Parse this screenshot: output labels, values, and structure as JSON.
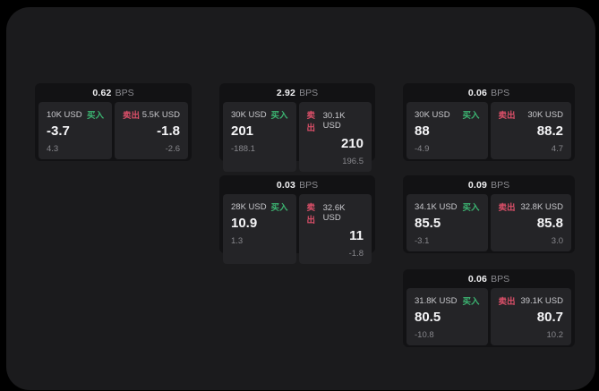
{
  "labels": {
    "bps": "BPS",
    "buy": "买入",
    "sell": "卖出"
  },
  "colors": {
    "background": "#000000",
    "panel": "#1b1b1d",
    "card": "#121214",
    "tile": "#242427",
    "buy_green": "#3cb572",
    "sell_red": "#d94f68"
  },
  "cards": [
    {
      "bps": "0.62",
      "buy": {
        "amount": "10K USD",
        "price": "-3.7",
        "change": "4.3"
      },
      "sell": {
        "amount": "5.5K USD",
        "price": "-1.8",
        "change": "-2.6"
      }
    },
    {
      "bps": "2.92",
      "buy": {
        "amount": "30K USD",
        "price": "201",
        "change": "-188.1"
      },
      "sell": {
        "amount": "30.1K USD",
        "price": "210",
        "change": "196.5"
      }
    },
    {
      "bps": "0.06",
      "buy": {
        "amount": "30K USD",
        "price": "88",
        "change": "-4.9"
      },
      "sell": {
        "amount": "30K USD",
        "price": "88.2",
        "change": "4.7"
      }
    },
    {
      "bps": "0.03",
      "buy": {
        "amount": "28K USD",
        "price": "10.9",
        "change": "1.3"
      },
      "sell": {
        "amount": "32.6K USD",
        "price": "11",
        "change": "-1.8"
      }
    },
    {
      "bps": "0.09",
      "buy": {
        "amount": "34.1K USD",
        "price": "85.5",
        "change": "-3.1"
      },
      "sell": {
        "amount": "32.8K USD",
        "price": "85.8",
        "change": "3.0"
      }
    },
    {
      "bps": "0.06",
      "buy": {
        "amount": "31.8K USD",
        "price": "80.5",
        "change": "-10.8"
      },
      "sell": {
        "amount": "39.1K USD",
        "price": "80.7",
        "change": "10.2"
      }
    }
  ]
}
